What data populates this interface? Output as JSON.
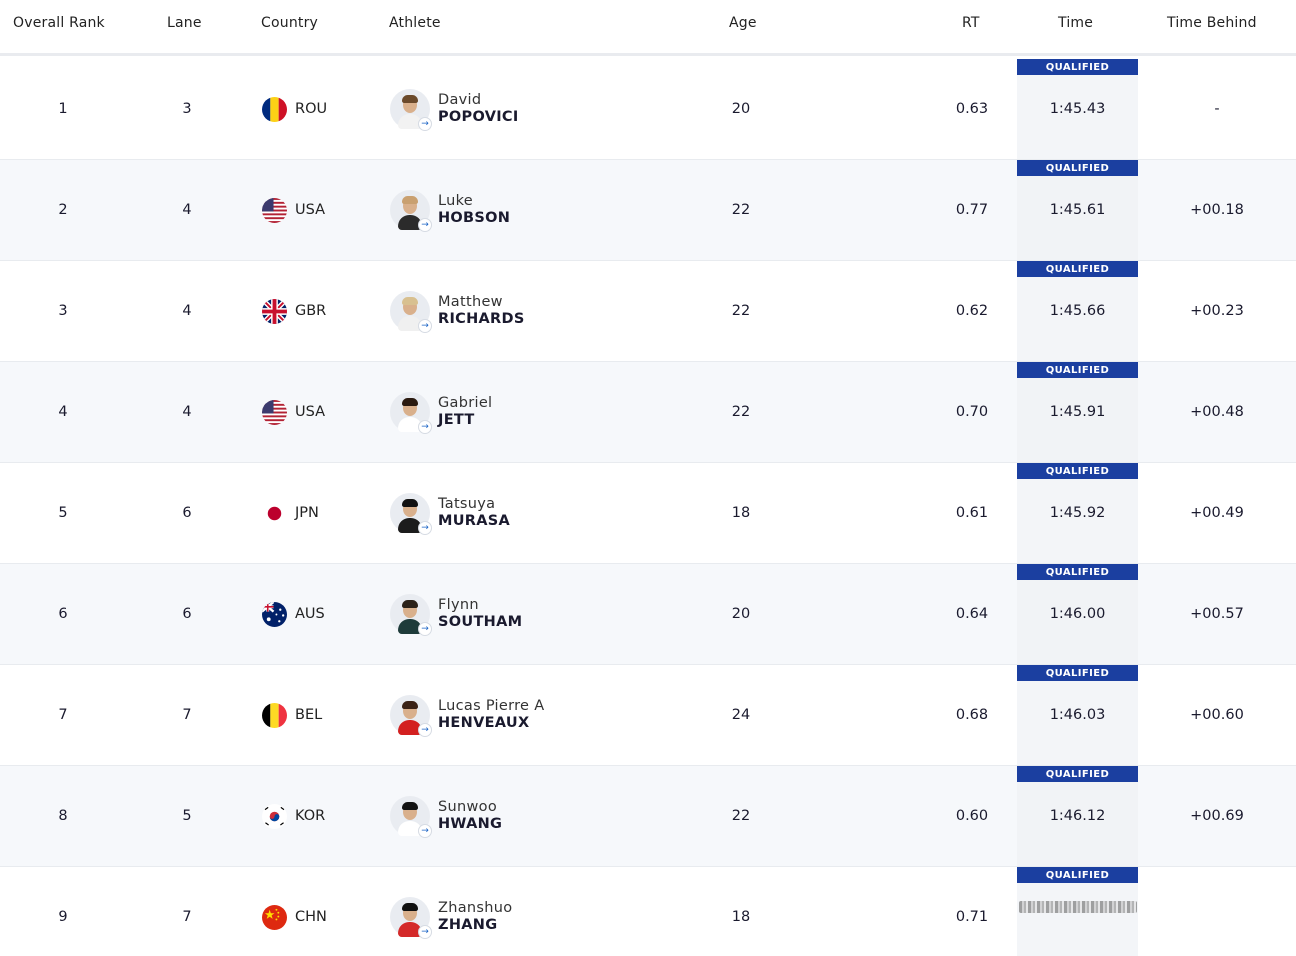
{
  "header": {
    "overall_rank": "Overall Rank",
    "lane": "Lane",
    "country": "Country",
    "athlete": "Athlete",
    "age": "Age",
    "rt": "RT",
    "time": "Time",
    "time_behind": "Time Behind"
  },
  "qualified_label": "QUALIFIED",
  "rows": [
    {
      "rank": "1",
      "lane": "3",
      "country": "ROU",
      "flag": "romania-flag-icon",
      "first": "David",
      "last": "POPOVICI",
      "age": "20",
      "rt": "0.63",
      "time": "1:45.43",
      "behind": "-"
    },
    {
      "rank": "2",
      "lane": "4",
      "country": "USA",
      "flag": "usa-flag-icon",
      "first": "Luke",
      "last": "HOBSON",
      "age": "22",
      "rt": "0.77",
      "time": "1:45.61",
      "behind": "+00.18"
    },
    {
      "rank": "3",
      "lane": "4",
      "country": "GBR",
      "flag": "gbr-flag-icon",
      "first": "Matthew",
      "last": "RICHARDS",
      "age": "22",
      "rt": "0.62",
      "time": "1:45.66",
      "behind": "+00.23"
    },
    {
      "rank": "4",
      "lane": "4",
      "country": "USA",
      "flag": "usa-flag-icon",
      "first": "Gabriel",
      "last": "JETT",
      "age": "22",
      "rt": "0.70",
      "time": "1:45.91",
      "behind": "+00.48"
    },
    {
      "rank": "5",
      "lane": "6",
      "country": "JPN",
      "flag": "japan-flag-icon",
      "first": "Tatsuya",
      "last": "MURASA",
      "age": "18",
      "rt": "0.61",
      "time": "1:45.92",
      "behind": "+00.49"
    },
    {
      "rank": "6",
      "lane": "6",
      "country": "AUS",
      "flag": "australia-flag-icon",
      "first": "Flynn",
      "last": "SOUTHAM",
      "age": "20",
      "rt": "0.64",
      "time": "1:46.00",
      "behind": "+00.57"
    },
    {
      "rank": "7",
      "lane": "7",
      "country": "BEL",
      "flag": "belgium-flag-icon",
      "first": "Lucas Pierre A",
      "last": "HENVEAUX",
      "age": "24",
      "rt": "0.68",
      "time": "1:46.03",
      "behind": "+00.60"
    },
    {
      "rank": "8",
      "lane": "5",
      "country": "KOR",
      "flag": "korea-flag-icon",
      "first": "Sunwoo",
      "last": "HWANG",
      "age": "22",
      "rt": "0.60",
      "time": "1:46.12",
      "behind": "+00.69"
    },
    {
      "rank": "9",
      "lane": "7",
      "country": "CHN",
      "flag": "china-flag-icon",
      "first": "Zhanshuo",
      "last": "ZHANG",
      "age": "18",
      "rt": "0.71",
      "time": "",
      "behind": ""
    }
  ],
  "colors": {
    "qualified_bg": "#1b3fa0",
    "row_alt_bg": "#f6f8fb",
    "link_blue": "#1b63c5"
  }
}
